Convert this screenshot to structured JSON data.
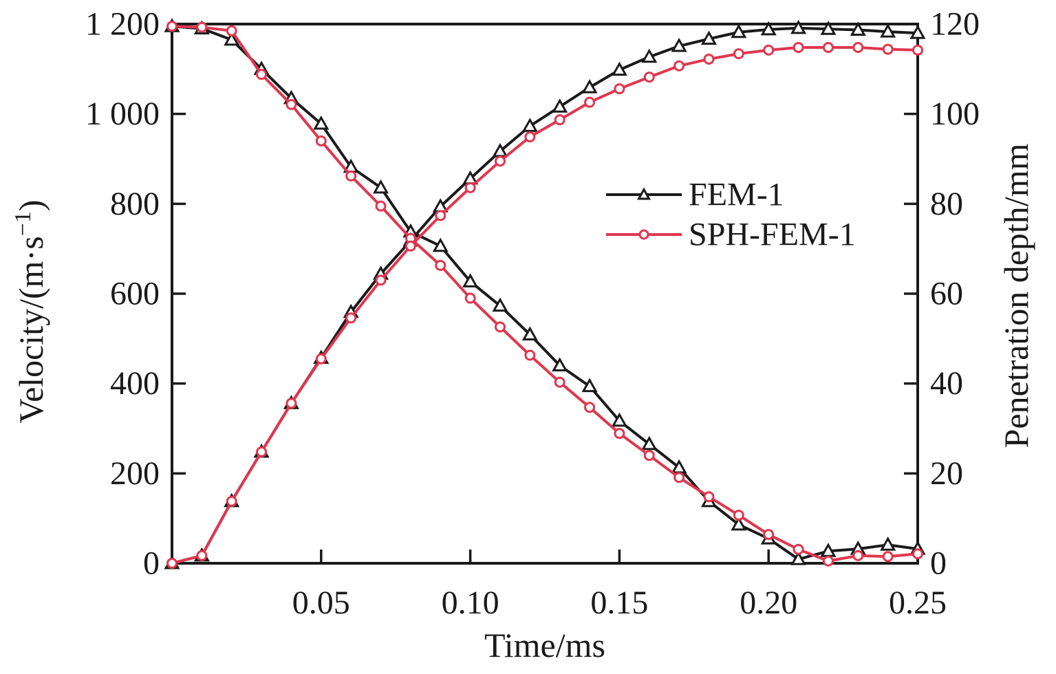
{
  "chart_data": {
    "type": "line",
    "title": "",
    "xlabel": "Time/ms",
    "ylabel_left": "Velocity/(m·s⁻¹)",
    "ylabel_left_parts": {
      "prefix": "Velocity/(m·s",
      "sup": "−1",
      "suffix": ")"
    },
    "ylabel_right": "Penetration depth/mm",
    "xlim": [
      0,
      0.25
    ],
    "x_ticks": [
      0.05,
      0.1,
      0.15,
      0.2,
      0.25
    ],
    "x_tick_labels": [
      "0.05",
      "0.10",
      "0.15",
      "0.20",
      "0.25"
    ],
    "left_axis": {
      "label": "Velocity/(m·s⁻¹)",
      "range": [
        0,
        1200
      ],
      "ticks": [
        0,
        200,
        400,
        600,
        800,
        1000,
        1200
      ],
      "tick_labels": [
        "0",
        "200",
        "400",
        "600",
        "800",
        "1 000",
        "1 200"
      ]
    },
    "right_axis": {
      "label": "Penetration depth/mm",
      "range": [
        0,
        120
      ],
      "ticks": [
        0,
        20,
        40,
        60,
        80,
        100,
        120
      ],
      "tick_labels": [
        "0",
        "20",
        "40",
        "60",
        "80",
        "100",
        "120"
      ]
    },
    "grid": false,
    "frame": true,
    "background": "#ffffff",
    "axis_color": "#1a1a1a",
    "legend_position": "inside-right-upper",
    "x": [
      0,
      0.01,
      0.02,
      0.03,
      0.04,
      0.05,
      0.06,
      0.07,
      0.08,
      0.09,
      0.1,
      0.11,
      0.12,
      0.13,
      0.14,
      0.15,
      0.16,
      0.17,
      0.18,
      0.19,
      0.2,
      0.21,
      0.22,
      0.23,
      0.24,
      0.25
    ],
    "series": [
      {
        "name": "FEM-1",
        "color": "#1a1a1a",
        "marker": "triangle",
        "velocity_m_s": [
          1195,
          1190,
          1165,
          1100,
          1035,
          978,
          882,
          836,
          738,
          706,
          627,
          573,
          509,
          440,
          394,
          317,
          265,
          213,
          138,
          86,
          55,
          9,
          27,
          32,
          41,
          32
        ],
        "penetration_depth_mm": [
          0,
          1.7,
          13.8,
          24.8,
          35.6,
          45.7,
          55.9,
          64.4,
          71.8,
          79.4,
          85.6,
          91.7,
          97.3,
          101.6,
          105.9,
          109.8,
          112.7,
          115.1,
          116.7,
          118.2,
          118.8,
          119.1,
          118.9,
          118.7,
          118.3,
          118.0
        ]
      },
      {
        "name": "SPH-FEM-1",
        "color": "#e0374e",
        "marker": "circle",
        "velocity_m_s": [
          1195,
          1193,
          1185,
          1088,
          1021,
          940,
          862,
          795,
          723,
          663,
          590,
          526,
          463,
          403,
          347,
          289,
          240,
          191,
          148,
          107,
          64,
          31,
          5,
          17,
          15,
          21
        ],
        "penetration_depth_mm": [
          0,
          1.7,
          13.8,
          24.8,
          35.6,
          45.5,
          54.6,
          63.0,
          70.6,
          77.4,
          83.6,
          89.5,
          94.9,
          98.7,
          102.6,
          105.6,
          108.2,
          110.7,
          112.2,
          113.4,
          114.2,
          114.8,
          114.8,
          114.8,
          114.4,
          114.2
        ]
      }
    ],
    "legend": {
      "entries": [
        {
          "label": "FEM-1",
          "color": "#1a1a1a",
          "marker": "triangle"
        },
        {
          "label": "SPH-FEM-1",
          "color": "#e0374e",
          "marker": "circle"
        }
      ]
    }
  }
}
